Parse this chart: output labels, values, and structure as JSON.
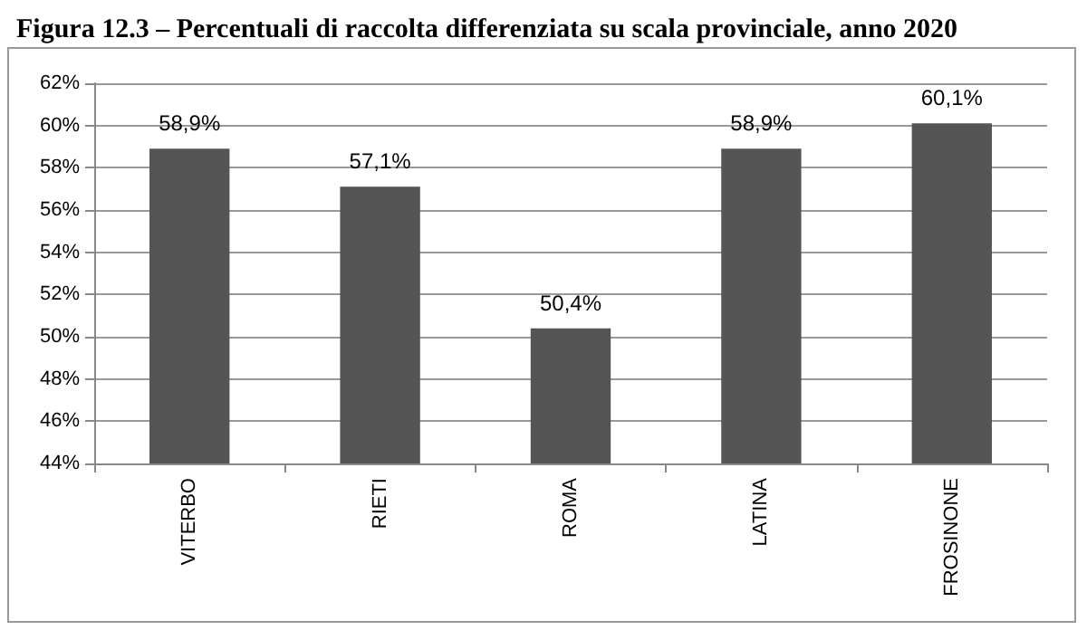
{
  "chart_data": {
    "type": "bar",
    "title": "Figura 12.3 – Percentuali di raccolta differenziata su scala provinciale, anno 2020",
    "categories": [
      "VITERBO",
      "RIETI",
      "ROMA",
      "LATINA",
      "FROSINONE"
    ],
    "values": [
      58.9,
      57.1,
      50.4,
      58.9,
      60.1
    ],
    "value_labels": [
      "58,9%",
      "57,1%",
      "50,4%",
      "58,9%",
      "60,1%"
    ],
    "color": "#555555",
    "ylim": [
      44,
      62
    ],
    "yticks": [
      {
        "value": 44,
        "label": "44%"
      },
      {
        "value": 46,
        "label": "46%"
      },
      {
        "value": 48,
        "label": "48%"
      },
      {
        "value": 50,
        "label": "50%"
      },
      {
        "value": 52,
        "label": "52%"
      },
      {
        "value": 54,
        "label": "54%"
      },
      {
        "value": 56,
        "label": "56%"
      },
      {
        "value": 58,
        "label": "58%"
      },
      {
        "value": 60,
        "label": "60%"
      },
      {
        "value": 62,
        "label": "62%"
      }
    ],
    "grid": "y"
  }
}
